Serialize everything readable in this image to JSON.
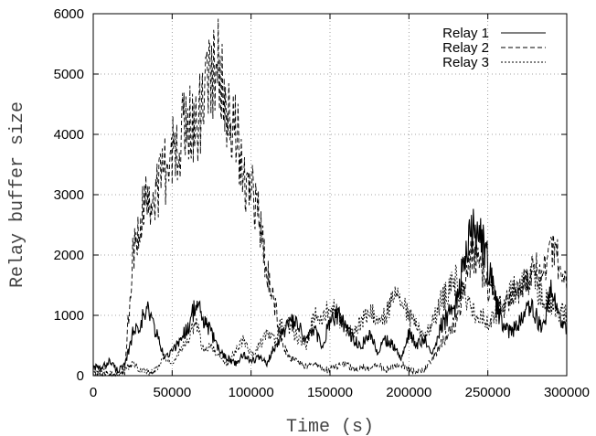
{
  "chart_data": {
    "type": "line",
    "title": "",
    "xlabel": "Time (s)",
    "ylabel": "Relay buffer size",
    "xlim": [
      0,
      300000
    ],
    "ylim": [
      0,
      6000
    ],
    "grid": true,
    "legend_position": "top-right",
    "x_ticks": [
      0,
      50000,
      100000,
      150000,
      200000,
      250000,
      300000
    ],
    "x_tick_labels": [
      "0",
      "50000",
      "100000",
      "150000",
      "200000",
      "250000",
      "300000"
    ],
    "y_ticks": [
      0,
      1000,
      2000,
      3000,
      4000,
      5000,
      6000
    ],
    "y_tick_labels": [
      "0",
      "1000",
      "2000",
      "3000",
      "4000",
      "5000",
      "6000"
    ],
    "series": [
      {
        "name": "Relay 1",
        "style": "solid",
        "x": [
          0,
          5000,
          10000,
          15000,
          20000,
          25000,
          30000,
          35000,
          40000,
          45000,
          50000,
          55000,
          60000,
          65000,
          70000,
          75000,
          80000,
          85000,
          90000,
          95000,
          100000,
          105000,
          110000,
          115000,
          120000,
          125000,
          130000,
          135000,
          140000,
          145000,
          150000,
          155000,
          160000,
          165000,
          170000,
          175000,
          180000,
          185000,
          190000,
          195000,
          200000,
          205000,
          210000,
          215000,
          220000,
          225000,
          230000,
          235000,
          240000,
          245000,
          250000,
          255000,
          260000,
          265000,
          270000,
          275000,
          280000,
          285000,
          290000,
          295000,
          300000
        ],
        "values": [
          150,
          100,
          250,
          100,
          150,
          700,
          900,
          1100,
          700,
          300,
          400,
          600,
          800,
          1200,
          900,
          700,
          400,
          300,
          200,
          350,
          250,
          300,
          200,
          500,
          700,
          900,
          800,
          600,
          750,
          500,
          900,
          1000,
          800,
          600,
          500,
          700,
          400,
          600,
          500,
          300,
          700,
          500,
          600,
          400,
          800,
          1000,
          1200,
          1900,
          2400,
          2300,
          1900,
          1200,
          800,
          700,
          900,
          1200,
          1000,
          800,
          1400,
          1000,
          700
        ]
      },
      {
        "name": "Relay 2",
        "style": "dashed",
        "x": [
          0,
          5000,
          10000,
          15000,
          20000,
          25000,
          30000,
          35000,
          40000,
          45000,
          50000,
          55000,
          60000,
          65000,
          70000,
          75000,
          80000,
          85000,
          90000,
          95000,
          100000,
          105000,
          110000,
          115000,
          120000,
          125000,
          130000,
          135000,
          140000,
          145000,
          150000,
          155000,
          160000,
          165000,
          170000,
          175000,
          180000,
          185000,
          190000,
          195000,
          200000,
          205000,
          210000,
          215000,
          220000,
          225000,
          230000,
          235000,
          240000,
          245000,
          250000,
          255000,
          260000,
          265000,
          270000,
          275000,
          280000,
          285000,
          290000,
          295000,
          300000
        ],
        "values": [
          0,
          0,
          0,
          0,
          50,
          2000,
          2700,
          2900,
          3100,
          3400,
          3700,
          4000,
          4300,
          4100,
          4500,
          5000,
          5300,
          4500,
          4200,
          3200,
          3300,
          2600,
          1700,
          1200,
          500,
          300,
          200,
          150,
          200,
          100,
          100,
          150,
          200,
          100,
          150,
          100,
          200,
          100,
          150,
          200,
          100,
          50,
          100,
          300,
          500,
          700,
          900,
          1500,
          2000,
          1800,
          1500,
          1200,
          1100,
          1300,
          1400,
          1600,
          1800,
          1700,
          2100,
          1900,
          1400
        ]
      },
      {
        "name": "Relay 3",
        "style": "dotted",
        "x": [
          0,
          5000,
          10000,
          15000,
          20000,
          25000,
          30000,
          35000,
          40000,
          45000,
          50000,
          55000,
          60000,
          65000,
          70000,
          75000,
          80000,
          85000,
          90000,
          95000,
          100000,
          105000,
          110000,
          115000,
          120000,
          125000,
          130000,
          135000,
          140000,
          145000,
          150000,
          155000,
          160000,
          165000,
          170000,
          175000,
          180000,
          185000,
          190000,
          195000,
          200000,
          205000,
          210000,
          215000,
          220000,
          225000,
          230000,
          235000,
          240000,
          245000,
          250000,
          255000,
          260000,
          265000,
          270000,
          275000,
          280000,
          285000,
          290000,
          295000,
          300000
        ],
        "values": [
          0,
          100,
          50,
          0,
          100,
          200,
          100,
          50,
          100,
          300,
          200,
          400,
          600,
          900,
          400,
          500,
          300,
          200,
          400,
          600,
          350,
          500,
          700,
          600,
          900,
          800,
          600,
          500,
          1000,
          900,
          1200,
          1000,
          800,
          700,
          900,
          1100,
          900,
          1000,
          1300,
          1200,
          1000,
          800,
          600,
          900,
          1200,
          1400,
          1600,
          1300,
          1100,
          1000,
          900,
          1000,
          1200,
          1400,
          1500,
          1600,
          1500,
          1300,
          1200,
          1100,
          1000
        ]
      }
    ]
  }
}
